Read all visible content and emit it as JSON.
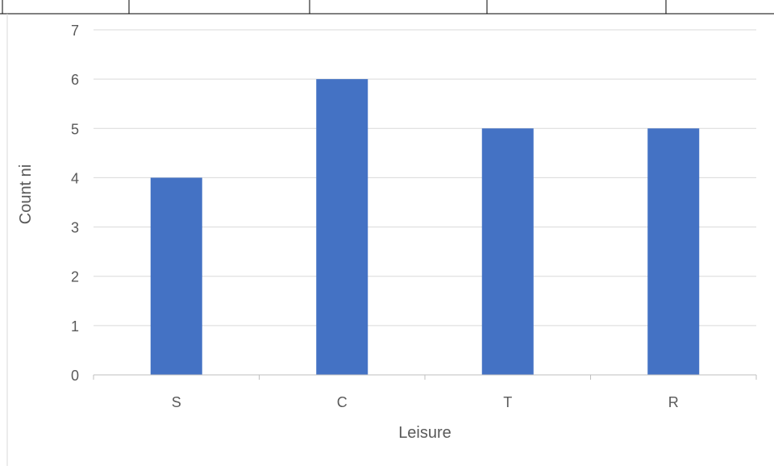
{
  "chart_data": {
    "type": "bar",
    "categories": [
      "S",
      "C",
      "T",
      "R"
    ],
    "values": [
      4,
      6,
      5,
      5
    ],
    "title": "",
    "xlabel": "Leisure",
    "ylabel": "Count ni",
    "ylim": [
      0,
      7
    ],
    "yticks": [
      0,
      1,
      2,
      3,
      4,
      5,
      6,
      7
    ],
    "grid": true,
    "legend": "none",
    "bar_color": "#4472C4",
    "gridline_color": "#D9D9D9",
    "axis_color": "#BFBFBF",
    "text_color": "#595959",
    "table_border_color": "#000000"
  }
}
